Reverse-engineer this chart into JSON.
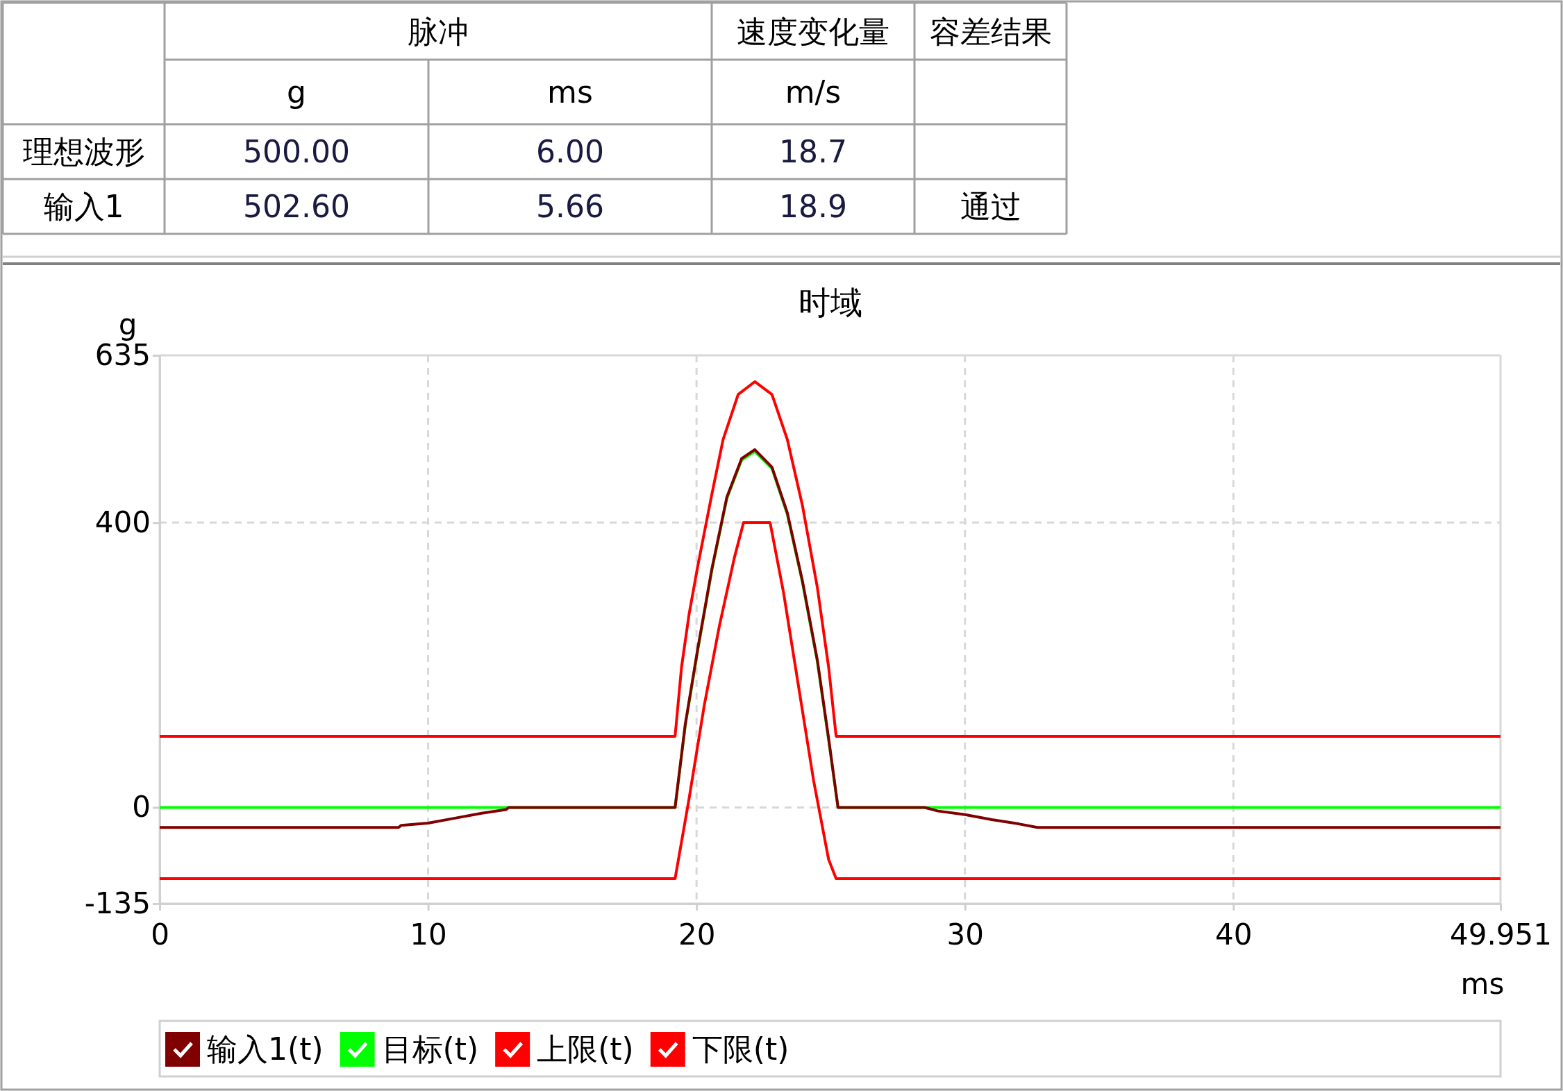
{
  "chart_data": [
    {
      "type": "other",
      "annotations": [
        "脉冲",
        "速度变化量",
        "容差结果",
        "g",
        "ms",
        "m/s",
        "理想波形",
        "500.00",
        "6.00",
        "18.7",
        "输入1",
        "502.60",
        "5.66",
        "18.9",
        "通过"
      ]
    },
    {
      "type": "line",
      "title": "时域",
      "xlabel": "ms",
      "ylabel": "g",
      "xlim": [
        0,
        49.951
      ],
      "ylim": [
        -135,
        635
      ],
      "xticks": [
        0,
        10,
        20,
        30,
        40,
        49.951
      ],
      "yticks": [
        -135,
        0,
        400,
        635
      ],
      "grid": true,
      "legend": "bottom",
      "series": [
        {
          "name": "输入1(t)",
          "color": "#800000",
          "x": [
            0,
            8.9,
            9,
            10,
            11,
            12,
            12.9,
            13,
            19.2,
            19.58,
            20.05,
            20.57,
            21.13,
            21.68,
            22.17,
            22.81,
            23.38,
            23.94,
            24.5,
            24.92,
            25.27,
            28.5,
            29,
            30,
            31,
            32,
            32.7,
            49.951
          ],
          "values": [
            -28,
            -28,
            -25,
            -22,
            -15,
            -8,
            -3,
            0,
            0,
            117,
            224,
            335,
            436,
            490,
            502.6,
            478,
            414,
            319,
            207,
            97,
            0,
            0,
            -5,
            -10,
            -17,
            -23,
            -28,
            -28
          ]
        },
        {
          "name": "目标(t)",
          "color": "#00ff00",
          "x": [
            0,
            19.2,
            19.58,
            20.05,
            20.57,
            21.13,
            21.68,
            22.17,
            22.81,
            23.38,
            23.94,
            24.5,
            24.92,
            25.27,
            49.951
          ],
          "values": [
            0,
            0,
            115,
            222,
            333,
            434,
            488,
            500,
            476,
            412,
            317,
            205,
            95,
            0,
            0
          ]
        },
        {
          "name": "上限(t)",
          "color": "#ff0000",
          "x": [
            0,
            19.2,
            19.44,
            19.72,
            20.05,
            20.57,
            20.99,
            21.55,
            22.17,
            22.81,
            23.38,
            23.94,
            24.5,
            24.92,
            25.2,
            49.951
          ],
          "values": [
            100,
            100,
            197,
            271,
            340,
            440,
            517,
            580,
            598,
            580,
            517,
            425,
            309,
            197,
            100,
            100
          ]
        },
        {
          "name": "下限(t)",
          "color": "#ff0000",
          "x": [
            0,
            19.2,
            19.72,
            20.29,
            20.85,
            21.41,
            21.75,
            22.74,
            23.24,
            23.8,
            24.36,
            24.92,
            25.2,
            49.951
          ],
          "values": [
            -100,
            -100,
            12,
            144,
            255,
            351,
            400,
            400,
            302,
            170,
            38,
            -73,
            -100,
            -100
          ]
        }
      ]
    }
  ]
}
